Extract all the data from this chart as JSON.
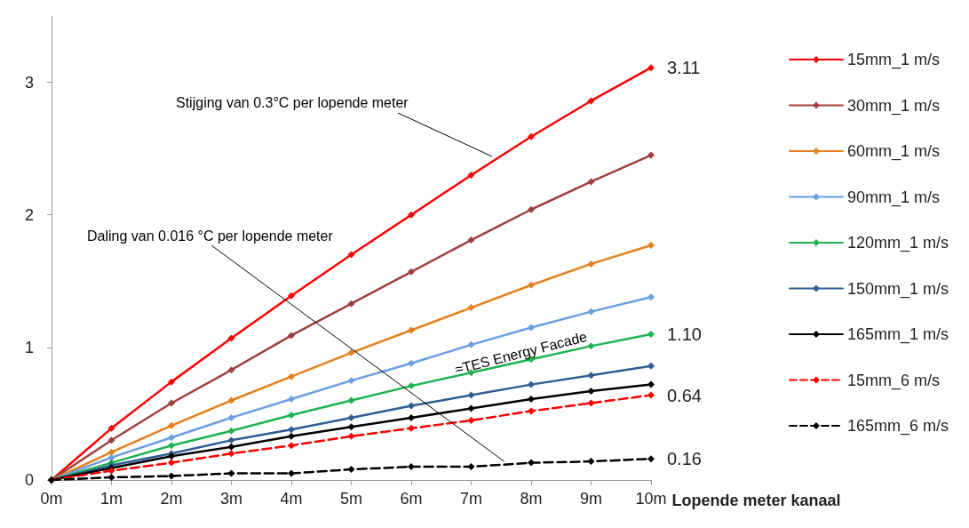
{
  "chart_data": {
    "type": "line",
    "xlabel": "Lopende meter kanaal",
    "x": [
      0,
      1,
      2,
      3,
      4,
      5,
      6,
      7,
      8,
      9,
      10
    ],
    "xlim": [
      0,
      10
    ],
    "xticks": [
      {
        "value": 0,
        "label": "0m"
      },
      {
        "value": 1,
        "label": "1m"
      },
      {
        "value": 2,
        "label": "2m"
      },
      {
        "value": 3,
        "label": "3m"
      },
      {
        "value": 4,
        "label": "4m"
      },
      {
        "value": 5,
        "label": "5m"
      },
      {
        "value": 6,
        "label": "6m"
      },
      {
        "value": 7,
        "label": "7m"
      },
      {
        "value": 8,
        "label": "8m"
      },
      {
        "value": 9,
        "label": "9m"
      },
      {
        "value": 10,
        "label": "10m"
      }
    ],
    "ylim": [
      0,
      3.5
    ],
    "yticks": [
      0,
      1,
      2,
      3
    ],
    "grid": false,
    "legend": "right",
    "marker": "diamond",
    "series": [
      {
        "name": "15mm_1 m/s",
        "color": "#ff0000",
        "line_style": "solid",
        "values": [
          0,
          0.39,
          0.74,
          1.07,
          1.39,
          1.7,
          2.0,
          2.3,
          2.59,
          2.86,
          3.11
        ],
        "value_labels": [
          null,
          null,
          null,
          null,
          null,
          null,
          null,
          null,
          null,
          null,
          "3.11"
        ]
      },
      {
        "name": "30mm_1 m/s",
        "color": "#9e413e",
        "line_style": "solid",
        "values": [
          0,
          0.3,
          0.58,
          0.83,
          1.09,
          1.33,
          1.57,
          1.81,
          2.04,
          2.25,
          2.45
        ]
      },
      {
        "name": "60mm_1 m/s",
        "color": "#e5801c",
        "line_style": "solid",
        "values": [
          0,
          0.21,
          0.41,
          0.6,
          0.78,
          0.96,
          1.13,
          1.3,
          1.47,
          1.63,
          1.77
        ]
      },
      {
        "name": "90mm_1 m/s",
        "color": "#6a9fe0",
        "line_style": "solid",
        "values": [
          0,
          0.17,
          0.32,
          0.47,
          0.61,
          0.75,
          0.88,
          1.02,
          1.15,
          1.27,
          1.38
        ]
      },
      {
        "name": "120mm_1 m/s",
        "color": "#1db350",
        "line_style": "solid",
        "values": [
          0,
          0.13,
          0.26,
          0.37,
          0.49,
          0.6,
          0.71,
          0.81,
          0.91,
          1.01,
          1.1
        ],
        "value_labels": [
          null,
          null,
          null,
          null,
          null,
          null,
          null,
          null,
          null,
          null,
          "1.10"
        ]
      },
      {
        "name": "150mm_1 m/s",
        "color": "#2e5d91",
        "line_style": "solid",
        "values": [
          0,
          0.11,
          0.2,
          0.3,
          0.38,
          0.47,
          0.56,
          0.64,
          0.72,
          0.79,
          0.86
        ]
      },
      {
        "name": "165mm_1 m/s",
        "color": "#000000",
        "line_style": "solid",
        "values": [
          0,
          0.09,
          0.18,
          0.25,
          0.33,
          0.4,
          0.47,
          0.54,
          0.61,
          0.67,
          0.72
        ]
      },
      {
        "name": "15mm_6 m/s",
        "color": "#ff0000",
        "line_style": "dashed",
        "values": [
          0,
          0.07,
          0.13,
          0.2,
          0.26,
          0.33,
          0.39,
          0.45,
          0.52,
          0.58,
          0.64
        ],
        "value_labels": [
          null,
          null,
          null,
          null,
          null,
          null,
          null,
          null,
          null,
          null,
          "0.64"
        ]
      },
      {
        "name": "165mm_6 m/s",
        "color": "#000000",
        "line_style": "dashed",
        "values": [
          0,
          0.02,
          0.03,
          0.05,
          0.05,
          0.08,
          0.1,
          0.1,
          0.13,
          0.14,
          0.16
        ],
        "value_labels": [
          null,
          null,
          null,
          null,
          null,
          null,
          null,
          null,
          null,
          null,
          "0.16"
        ]
      }
    ],
    "annotations": [
      {
        "text": "Stijging van 0.3°C per lopende meter",
        "x": 7.35,
        "y": 2.44
      },
      {
        "text": "Daling van 0.016 °C per lopende meter",
        "x": 7.55,
        "y": 0.14
      },
      "≈TES Energy Facade"
    ]
  }
}
